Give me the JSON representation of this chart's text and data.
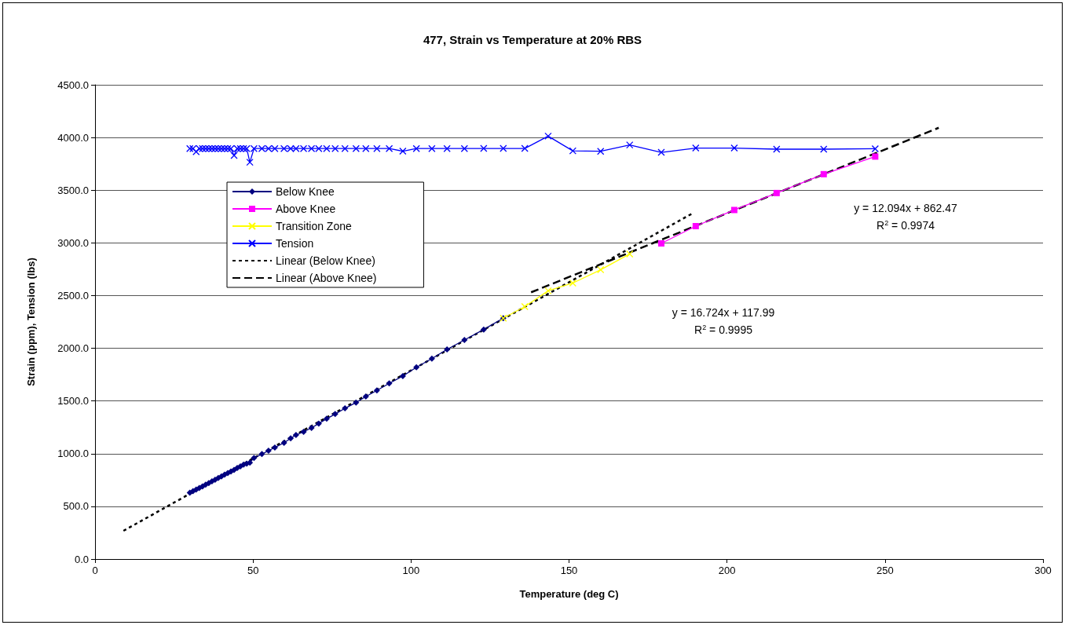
{
  "chart_data": {
    "type": "line",
    "title": "477, Strain vs Temperature at 20% RBS",
    "xlabel": "Temperature (deg C)",
    "ylabel": "Strain (ppm), Tension (lbs)",
    "xlim": [
      0,
      300
    ],
    "xticks": [
      0,
      50,
      100,
      150,
      200,
      250,
      300
    ],
    "ylim": [
      0,
      4500
    ],
    "yticks": [
      {
        "value": 0,
        "label": "0.0"
      },
      {
        "value": 500,
        "label": "500.0"
      },
      {
        "value": 1000,
        "label": "1000.0"
      },
      {
        "value": 1500,
        "label": "1500.0"
      },
      {
        "value": 2000,
        "label": "2000.0"
      },
      {
        "value": 2500,
        "label": "2500.0"
      },
      {
        "value": 3000,
        "label": "3000.0"
      },
      {
        "value": 3500,
        "label": "3500.0"
      },
      {
        "value": 4000,
        "label": "4000.0"
      },
      {
        "value": 4500,
        "label": "4500.0"
      }
    ],
    "grid": "y",
    "legend": "top left",
    "series": [
      {
        "name": "Below Knee",
        "color": "#000080",
        "marker": "diamond",
        "line_style": "solid",
        "x": [
          30,
          31,
          32,
          33,
          34,
          35,
          36,
          37,
          38,
          39,
          40,
          41,
          42,
          43,
          44,
          45,
          46,
          47,
          48,
          49,
          50.3,
          52.8,
          54.9,
          56.9,
          59.8,
          61.9,
          63.6,
          66,
          68.5,
          70.8,
          73.3,
          76,
          79.1,
          82.6,
          85.7,
          89.2,
          93.1,
          97.4,
          101.7,
          106.6,
          111.4,
          116.9,
          123,
          129.2
        ],
        "values": [
          630,
          645,
          660,
          675,
          690,
          705,
          720,
          738,
          752,
          770,
          785,
          800,
          815,
          830,
          845,
          865,
          880,
          895,
          905,
          915,
          959,
          996,
          1028,
          1058,
          1103,
          1145,
          1177,
          1207,
          1244,
          1286,
          1331,
          1376,
          1430,
          1485,
          1542,
          1600,
          1667,
          1736,
          1820,
          1902,
          1989,
          2079,
          2178,
          2285
        ]
      },
      {
        "name": "Above Knee",
        "color": "#ff00ff",
        "marker": "square",
        "line_style": "solid",
        "x": [
          179.2,
          190.1,
          202.3,
          215.7,
          230.6,
          246.9
        ],
        "values": [
          2995,
          3159,
          3312,
          3473,
          3652,
          3819
        ]
      },
      {
        "name": "Transition Zone",
        "color": "#ffff00",
        "marker": "cross",
        "line_style": "solid",
        "x": [
          129.2,
          136,
          143.4,
          151.2,
          160,
          169.2
        ],
        "values": [
          2285,
          2395,
          2545,
          2619,
          2745,
          2895
        ]
      },
      {
        "name": "Tension",
        "color": "#0000ff",
        "marker": "cross",
        "line_style": "solid",
        "x": [
          30,
          31,
          32,
          33,
          34,
          35,
          36,
          37,
          38,
          39,
          40,
          41,
          42,
          43,
          44,
          45,
          46,
          47,
          48,
          49,
          50.3,
          52.8,
          54.9,
          56.9,
          59.8,
          61.9,
          63.6,
          66,
          68.5,
          70.8,
          73.3,
          76,
          79.1,
          82.6,
          85.7,
          89.2,
          93.1,
          97.4,
          101.7,
          106.6,
          111.4,
          116.9,
          123,
          129.2,
          136,
          143.4,
          151.2,
          160,
          169.2,
          179.2,
          190.1,
          202.3,
          215.7,
          230.6,
          246.9
        ],
        "values": [
          3895,
          3895,
          3865,
          3895,
          3895,
          3895,
          3895,
          3895,
          3895,
          3895,
          3895,
          3895,
          3895,
          3895,
          3830,
          3895,
          3895,
          3895,
          3895,
          3765,
          3895,
          3895,
          3895,
          3895,
          3895,
          3895,
          3895,
          3895,
          3895,
          3895,
          3895,
          3895,
          3895,
          3895,
          3895,
          3895,
          3895,
          3870,
          3895,
          3895,
          3895,
          3895,
          3896,
          3896,
          3896,
          4013,
          3873,
          3869,
          3929,
          3859,
          3900,
          3900,
          3889,
          3889,
          3893
        ]
      },
      {
        "name": "Linear (Below Knee)",
        "color": "#000000",
        "marker": "none",
        "line_style": "dotted",
        "x": [
          9,
          189
        ],
        "values": [
          268,
          3279
        ]
      },
      {
        "name": "Linear (Above Knee)",
        "color": "#000000",
        "marker": "none",
        "line_style": "dashed",
        "x": [
          138,
          267
        ],
        "values": [
          2531,
          4092
        ]
      }
    ],
    "annotations": [
      "y = 12.094x + 862.47",
      "R$^{2}$ = 0.9974",
      "y = 16.724x + 117.99",
      "R$^{2}$ = 0.9995"
    ]
  }
}
